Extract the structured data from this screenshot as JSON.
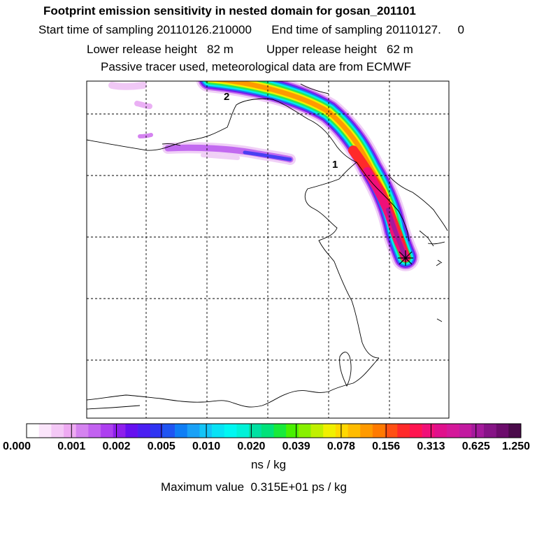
{
  "title": "Footprint emission sensitivity in nested domain for gosan_201101",
  "sampling_line": "Start time of sampling 20110126.210000      End time of sampling 20110127.     0",
  "release_line": "Lower release height   82 m          Upper release height   62 m",
  "tracer_line": "Passive tracer used, meteorological data are from ECMWF",
  "map": {
    "labels": [
      {
        "text": "1"
      },
      {
        "text": "2"
      }
    ],
    "receptor_marker": "star-icon"
  },
  "colorbar": {
    "colors": [
      "#ffffff",
      "#fbe5fb",
      "#f4c8f6",
      "#eeaaf2",
      "#d583f0",
      "#c262f0",
      "#ad3ff0",
      "#8e1fec",
      "#6610f0",
      "#4a1ff2",
      "#2f33f2",
      "#1f55f2",
      "#0f7ef5",
      "#1aa1f7",
      "#13c4f7",
      "#08e2f5",
      "#00f7f2",
      "#00f2d8",
      "#00e0a2",
      "#00e27a",
      "#18ea3a",
      "#48f000",
      "#88f000",
      "#c0f000",
      "#f0f000",
      "#ffd800",
      "#ffbc00",
      "#ff9a00",
      "#ff7a00",
      "#ff5014",
      "#ff2a2a",
      "#ff1450",
      "#f01078",
      "#e0108c",
      "#d4189a",
      "#c21aa0",
      "#a41a9c",
      "#861486",
      "#6c0c6c",
      "#4a0a4a"
    ],
    "ticks": [
      "0.000",
      "0.001",
      "0.002",
      "0.005",
      "0.010",
      "0.020",
      "0.039",
      "0.078",
      "0.156",
      "0.313",
      "0.625",
      "1.250"
    ],
    "unit": "ns / kg"
  },
  "max_value": "Maximum value  0.315E+01 ps / kg"
}
